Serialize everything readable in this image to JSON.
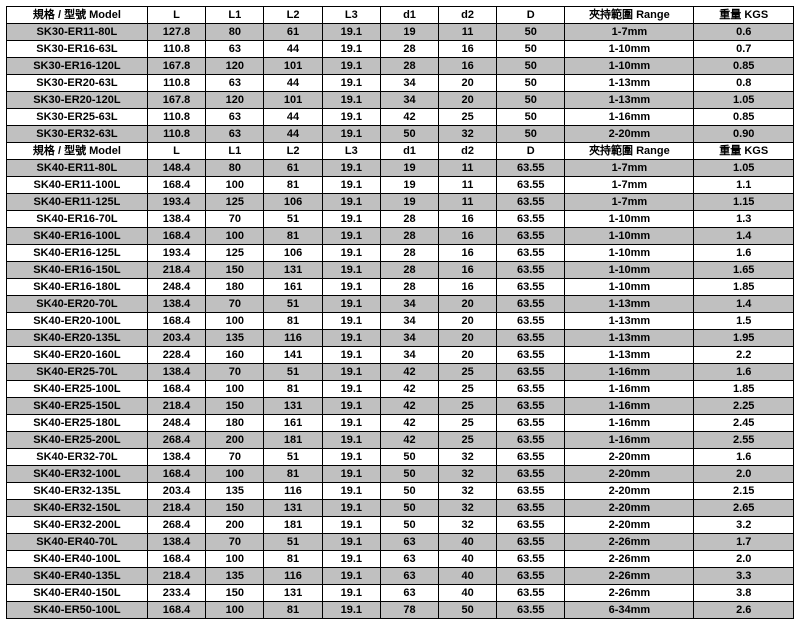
{
  "table": {
    "columns": [
      {
        "key": "model",
        "label": "規格 / 型號 Model",
        "class": "col-model"
      },
      {
        "key": "L",
        "label": "L",
        "class": "col-L"
      },
      {
        "key": "L1",
        "label": "L1",
        "class": "col-L1"
      },
      {
        "key": "L2",
        "label": "L2",
        "class": "col-L2"
      },
      {
        "key": "L3",
        "label": "L3",
        "class": "col-L3"
      },
      {
        "key": "d1",
        "label": "d1",
        "class": "col-d1"
      },
      {
        "key": "d2",
        "label": "d2",
        "class": "col-d2"
      },
      {
        "key": "D",
        "label": "D",
        "class": "col-D"
      },
      {
        "key": "range",
        "label": "夾持範圍 Range",
        "class": "col-range"
      },
      {
        "key": "kgs",
        "label": "重量 KGS",
        "class": "col-kgs"
      }
    ],
    "header_bg": "#ffffff",
    "odd_bg": "#c0c0c0",
    "even_bg": "#ffffff",
    "border_color": "#000000",
    "font_size": 11,
    "rows": [
      {
        "type": "header"
      },
      {
        "type": "data",
        "stripe": "odd",
        "model": "SK30-ER11-80L",
        "L": "127.8",
        "L1": "80",
        "L2": "61",
        "L3": "19.1",
        "d1": "19",
        "d2": "11",
        "D": "50",
        "range": "1-7mm",
        "kgs": "0.6"
      },
      {
        "type": "data",
        "stripe": "even",
        "model": "SK30-ER16-63L",
        "L": "110.8",
        "L1": "63",
        "L2": "44",
        "L3": "19.1",
        "d1": "28",
        "d2": "16",
        "D": "50",
        "range": "1-10mm",
        "kgs": "0.7"
      },
      {
        "type": "data",
        "stripe": "odd",
        "model": "SK30-ER16-120L",
        "L": "167.8",
        "L1": "120",
        "L2": "101",
        "L3": "19.1",
        "d1": "28",
        "d2": "16",
        "D": "50",
        "range": "1-10mm",
        "kgs": "0.85"
      },
      {
        "type": "data",
        "stripe": "even",
        "model": "SK30-ER20-63L",
        "L": "110.8",
        "L1": "63",
        "L2": "44",
        "L3": "19.1",
        "d1": "34",
        "d2": "20",
        "D": "50",
        "range": "1-13mm",
        "kgs": "0.8"
      },
      {
        "type": "data",
        "stripe": "odd",
        "model": "SK30-ER20-120L",
        "L": "167.8",
        "L1": "120",
        "L2": "101",
        "L3": "19.1",
        "d1": "34",
        "d2": "20",
        "D": "50",
        "range": "1-13mm",
        "kgs": "1.05"
      },
      {
        "type": "data",
        "stripe": "even",
        "model": "SK30-ER25-63L",
        "L": "110.8",
        "L1": "63",
        "L2": "44",
        "L3": "19.1",
        "d1": "42",
        "d2": "25",
        "D": "50",
        "range": "1-16mm",
        "kgs": "0.85"
      },
      {
        "type": "data",
        "stripe": "odd",
        "model": "SK30-ER32-63L",
        "L": "110.8",
        "L1": "63",
        "L2": "44",
        "L3": "19.1",
        "d1": "50",
        "d2": "32",
        "D": "50",
        "range": "2-20mm",
        "kgs": "0.90"
      },
      {
        "type": "header"
      },
      {
        "type": "data",
        "stripe": "odd",
        "model": "SK40-ER11-80L",
        "L": "148.4",
        "L1": "80",
        "L2": "61",
        "L3": "19.1",
        "d1": "19",
        "d2": "11",
        "D": "63.55",
        "range": "1-7mm",
        "kgs": "1.05"
      },
      {
        "type": "data",
        "stripe": "even",
        "model": "SK40-ER11-100L",
        "L": "168.4",
        "L1": "100",
        "L2": "81",
        "L3": "19.1",
        "d1": "19",
        "d2": "11",
        "D": "63.55",
        "range": "1-7mm",
        "kgs": "1.1"
      },
      {
        "type": "data",
        "stripe": "odd",
        "model": "SK40-ER11-125L",
        "L": "193.4",
        "L1": "125",
        "L2": "106",
        "L3": "19.1",
        "d1": "19",
        "d2": "11",
        "D": "63.55",
        "range": "1-7mm",
        "kgs": "1.15"
      },
      {
        "type": "data",
        "stripe": "even",
        "model": "SK40-ER16-70L",
        "L": "138.4",
        "L1": "70",
        "L2": "51",
        "L3": "19.1",
        "d1": "28",
        "d2": "16",
        "D": "63.55",
        "range": "1-10mm",
        "kgs": "1.3"
      },
      {
        "type": "data",
        "stripe": "odd",
        "model": "SK40-ER16-100L",
        "L": "168.4",
        "L1": "100",
        "L2": "81",
        "L3": "19.1",
        "d1": "28",
        "d2": "16",
        "D": "63.55",
        "range": "1-10mm",
        "kgs": "1.4"
      },
      {
        "type": "data",
        "stripe": "even",
        "model": "SK40-ER16-125L",
        "L": "193.4",
        "L1": "125",
        "L2": "106",
        "L3": "19.1",
        "d1": "28",
        "d2": "16",
        "D": "63.55",
        "range": "1-10mm",
        "kgs": "1.6"
      },
      {
        "type": "data",
        "stripe": "odd",
        "model": "SK40-ER16-150L",
        "L": "218.4",
        "L1": "150",
        "L2": "131",
        "L3": "19.1",
        "d1": "28",
        "d2": "16",
        "D": "63.55",
        "range": "1-10mm",
        "kgs": "1.65"
      },
      {
        "type": "data",
        "stripe": "even",
        "model": "SK40-ER16-180L",
        "L": "248.4",
        "L1": "180",
        "L2": "161",
        "L3": "19.1",
        "d1": "28",
        "d2": "16",
        "D": "63.55",
        "range": "1-10mm",
        "kgs": "1.85"
      },
      {
        "type": "data",
        "stripe": "odd",
        "model": "SK40-ER20-70L",
        "L": "138.4",
        "L1": "70",
        "L2": "51",
        "L3": "19.1",
        "d1": "34",
        "d2": "20",
        "D": "63.55",
        "range": "1-13mm",
        "kgs": "1.4"
      },
      {
        "type": "data",
        "stripe": "even",
        "model": "SK40-ER20-100L",
        "L": "168.4",
        "L1": "100",
        "L2": "81",
        "L3": "19.1",
        "d1": "34",
        "d2": "20",
        "D": "63.55",
        "range": "1-13mm",
        "kgs": "1.5"
      },
      {
        "type": "data",
        "stripe": "odd",
        "model": "SK40-ER20-135L",
        "L": "203.4",
        "L1": "135",
        "L2": "116",
        "L3": "19.1",
        "d1": "34",
        "d2": "20",
        "D": "63.55",
        "range": "1-13mm",
        "kgs": "1.95"
      },
      {
        "type": "data",
        "stripe": "even",
        "model": "SK40-ER20-160L",
        "L": "228.4",
        "L1": "160",
        "L2": "141",
        "L3": "19.1",
        "d1": "34",
        "d2": "20",
        "D": "63.55",
        "range": "1-13mm",
        "kgs": "2.2"
      },
      {
        "type": "data",
        "stripe": "odd",
        "model": "SK40-ER25-70L",
        "L": "138.4",
        "L1": "70",
        "L2": "51",
        "L3": "19.1",
        "d1": "42",
        "d2": "25",
        "D": "63.55",
        "range": "1-16mm",
        "kgs": "1.6"
      },
      {
        "type": "data",
        "stripe": "even",
        "model": "SK40-ER25-100L",
        "L": "168.4",
        "L1": "100",
        "L2": "81",
        "L3": "19.1",
        "d1": "42",
        "d2": "25",
        "D": "63.55",
        "range": "1-16mm",
        "kgs": "1.85"
      },
      {
        "type": "data",
        "stripe": "odd",
        "model": "SK40-ER25-150L",
        "L": "218.4",
        "L1": "150",
        "L2": "131",
        "L3": "19.1",
        "d1": "42",
        "d2": "25",
        "D": "63.55",
        "range": "1-16mm",
        "kgs": "2.25"
      },
      {
        "type": "data",
        "stripe": "even",
        "model": "SK40-ER25-180L",
        "L": "248.4",
        "L1": "180",
        "L2": "161",
        "L3": "19.1",
        "d1": "42",
        "d2": "25",
        "D": "63.55",
        "range": "1-16mm",
        "kgs": "2.45"
      },
      {
        "type": "data",
        "stripe": "odd",
        "model": "SK40-ER25-200L",
        "L": "268.4",
        "L1": "200",
        "L2": "181",
        "L3": "19.1",
        "d1": "42",
        "d2": "25",
        "D": "63.55",
        "range": "1-16mm",
        "kgs": "2.55"
      },
      {
        "type": "data",
        "stripe": "even",
        "model": "SK40-ER32-70L",
        "L": "138.4",
        "L1": "70",
        "L2": "51",
        "L3": "19.1",
        "d1": "50",
        "d2": "32",
        "D": "63.55",
        "range": "2-20mm",
        "kgs": "1.6"
      },
      {
        "type": "data",
        "stripe": "odd",
        "model": "SK40-ER32-100L",
        "L": "168.4",
        "L1": "100",
        "L2": "81",
        "L3": "19.1",
        "d1": "50",
        "d2": "32",
        "D": "63.55",
        "range": "2-20mm",
        "kgs": "2.0"
      },
      {
        "type": "data",
        "stripe": "even",
        "model": "SK40-ER32-135L",
        "L": "203.4",
        "L1": "135",
        "L2": "116",
        "L3": "19.1",
        "d1": "50",
        "d2": "32",
        "D": "63.55",
        "range": "2-20mm",
        "kgs": "2.15"
      },
      {
        "type": "data",
        "stripe": "odd",
        "model": "SK40-ER32-150L",
        "L": "218.4",
        "L1": "150",
        "L2": "131",
        "L3": "19.1",
        "d1": "50",
        "d2": "32",
        "D": "63.55",
        "range": "2-20mm",
        "kgs": "2.65"
      },
      {
        "type": "data",
        "stripe": "even",
        "model": "SK40-ER32-200L",
        "L": "268.4",
        "L1": "200",
        "L2": "181",
        "L3": "19.1",
        "d1": "50",
        "d2": "32",
        "D": "63.55",
        "range": "2-20mm",
        "kgs": "3.2"
      },
      {
        "type": "data",
        "stripe": "odd",
        "model": "SK40-ER40-70L",
        "L": "138.4",
        "L1": "70",
        "L2": "51",
        "L3": "19.1",
        "d1": "63",
        "d2": "40",
        "D": "63.55",
        "range": "2-26mm",
        "kgs": "1.7"
      },
      {
        "type": "data",
        "stripe": "even",
        "model": "SK40-ER40-100L",
        "L": "168.4",
        "L1": "100",
        "L2": "81",
        "L3": "19.1",
        "d1": "63",
        "d2": "40",
        "D": "63.55",
        "range": "2-26mm",
        "kgs": "2.0"
      },
      {
        "type": "data",
        "stripe": "odd",
        "model": "SK40-ER40-135L",
        "L": "218.4",
        "L1": "135",
        "L2": "116",
        "L3": "19.1",
        "d1": "63",
        "d2": "40",
        "D": "63.55",
        "range": "2-26mm",
        "kgs": "3.3"
      },
      {
        "type": "data",
        "stripe": "even",
        "model": "SK40-ER40-150L",
        "L": "233.4",
        "L1": "150",
        "L2": "131",
        "L3": "19.1",
        "d1": "63",
        "d2": "40",
        "D": "63.55",
        "range": "2-26mm",
        "kgs": "3.8"
      },
      {
        "type": "data",
        "stripe": "odd",
        "model": "SK40-ER50-100L",
        "L": "168.4",
        "L1": "100",
        "L2": "81",
        "L3": "19.1",
        "d1": "78",
        "d2": "50",
        "D": "63.55",
        "range": "6-34mm",
        "kgs": "2.6"
      }
    ]
  }
}
